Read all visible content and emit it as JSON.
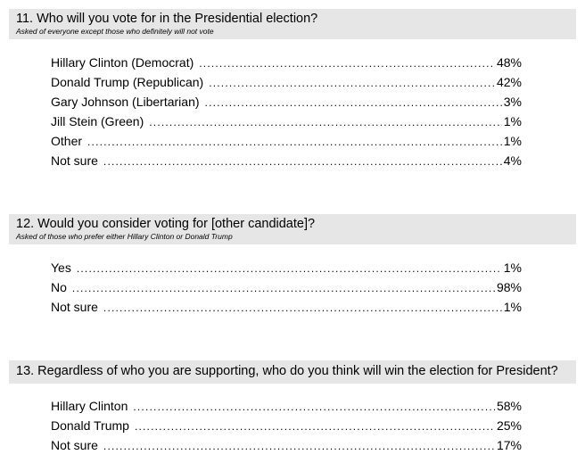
{
  "questions": [
    {
      "title": "11. Who will you vote for in the Presidential election?",
      "subtitle": "Asked of everyone except those who definitely will not vote",
      "rows": [
        {
          "label": "Hillary Clinton (Democrat)",
          "value": "48%"
        },
        {
          "label": "Donald Trump (Republican)",
          "value": "42%"
        },
        {
          "label": "Gary Johnson (Libertarian)",
          "value": "3%"
        },
        {
          "label": "Jill Stein (Green)",
          "value": "1%"
        },
        {
          "label": "Other",
          "value": "1%"
        },
        {
          "label": "Not sure",
          "value": "4%"
        }
      ]
    },
    {
      "title": "12. Would you consider voting for [other candidate]?",
      "subtitle": "Asked of those who prefer either Hillary Clinton or Donald Trump",
      "rows": [
        {
          "label": "Yes",
          "value": "1%"
        },
        {
          "label": "No",
          "value": "98%"
        },
        {
          "label": "Not sure",
          "value": "1%"
        }
      ]
    },
    {
      "title": "13. Regardless of who you are supporting, who do you think will win the election for President?",
      "subtitle": "",
      "rows": [
        {
          "label": "Hillary Clinton",
          "value": "58%"
        },
        {
          "label": "Donald Trump",
          "value": "25%"
        },
        {
          "label": "Not sure",
          "value": "17%"
        }
      ]
    }
  ]
}
